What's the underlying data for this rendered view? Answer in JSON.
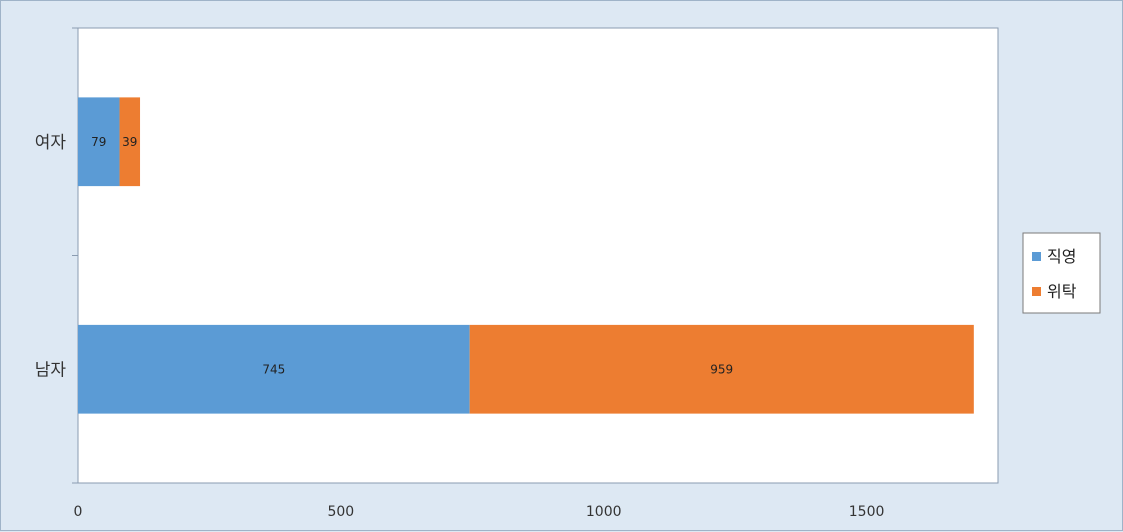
{
  "chart_data": {
    "type": "bar",
    "orientation": "horizontal",
    "stacked": true,
    "categories": [
      "여자",
      "남자"
    ],
    "series": [
      {
        "name": "직영",
        "color": "#5b9bd5",
        "values": [
          79,
          745
        ]
      },
      {
        "name": "위탁",
        "color": "#ed7d31",
        "values": [
          39,
          959
        ]
      }
    ],
    "xlim": [
      0,
      1750
    ],
    "xticks": [
      0,
      500,
      1000,
      1500
    ],
    "title": "",
    "xlabel": "",
    "ylabel": "",
    "grid": false,
    "legend_position": "right"
  }
}
